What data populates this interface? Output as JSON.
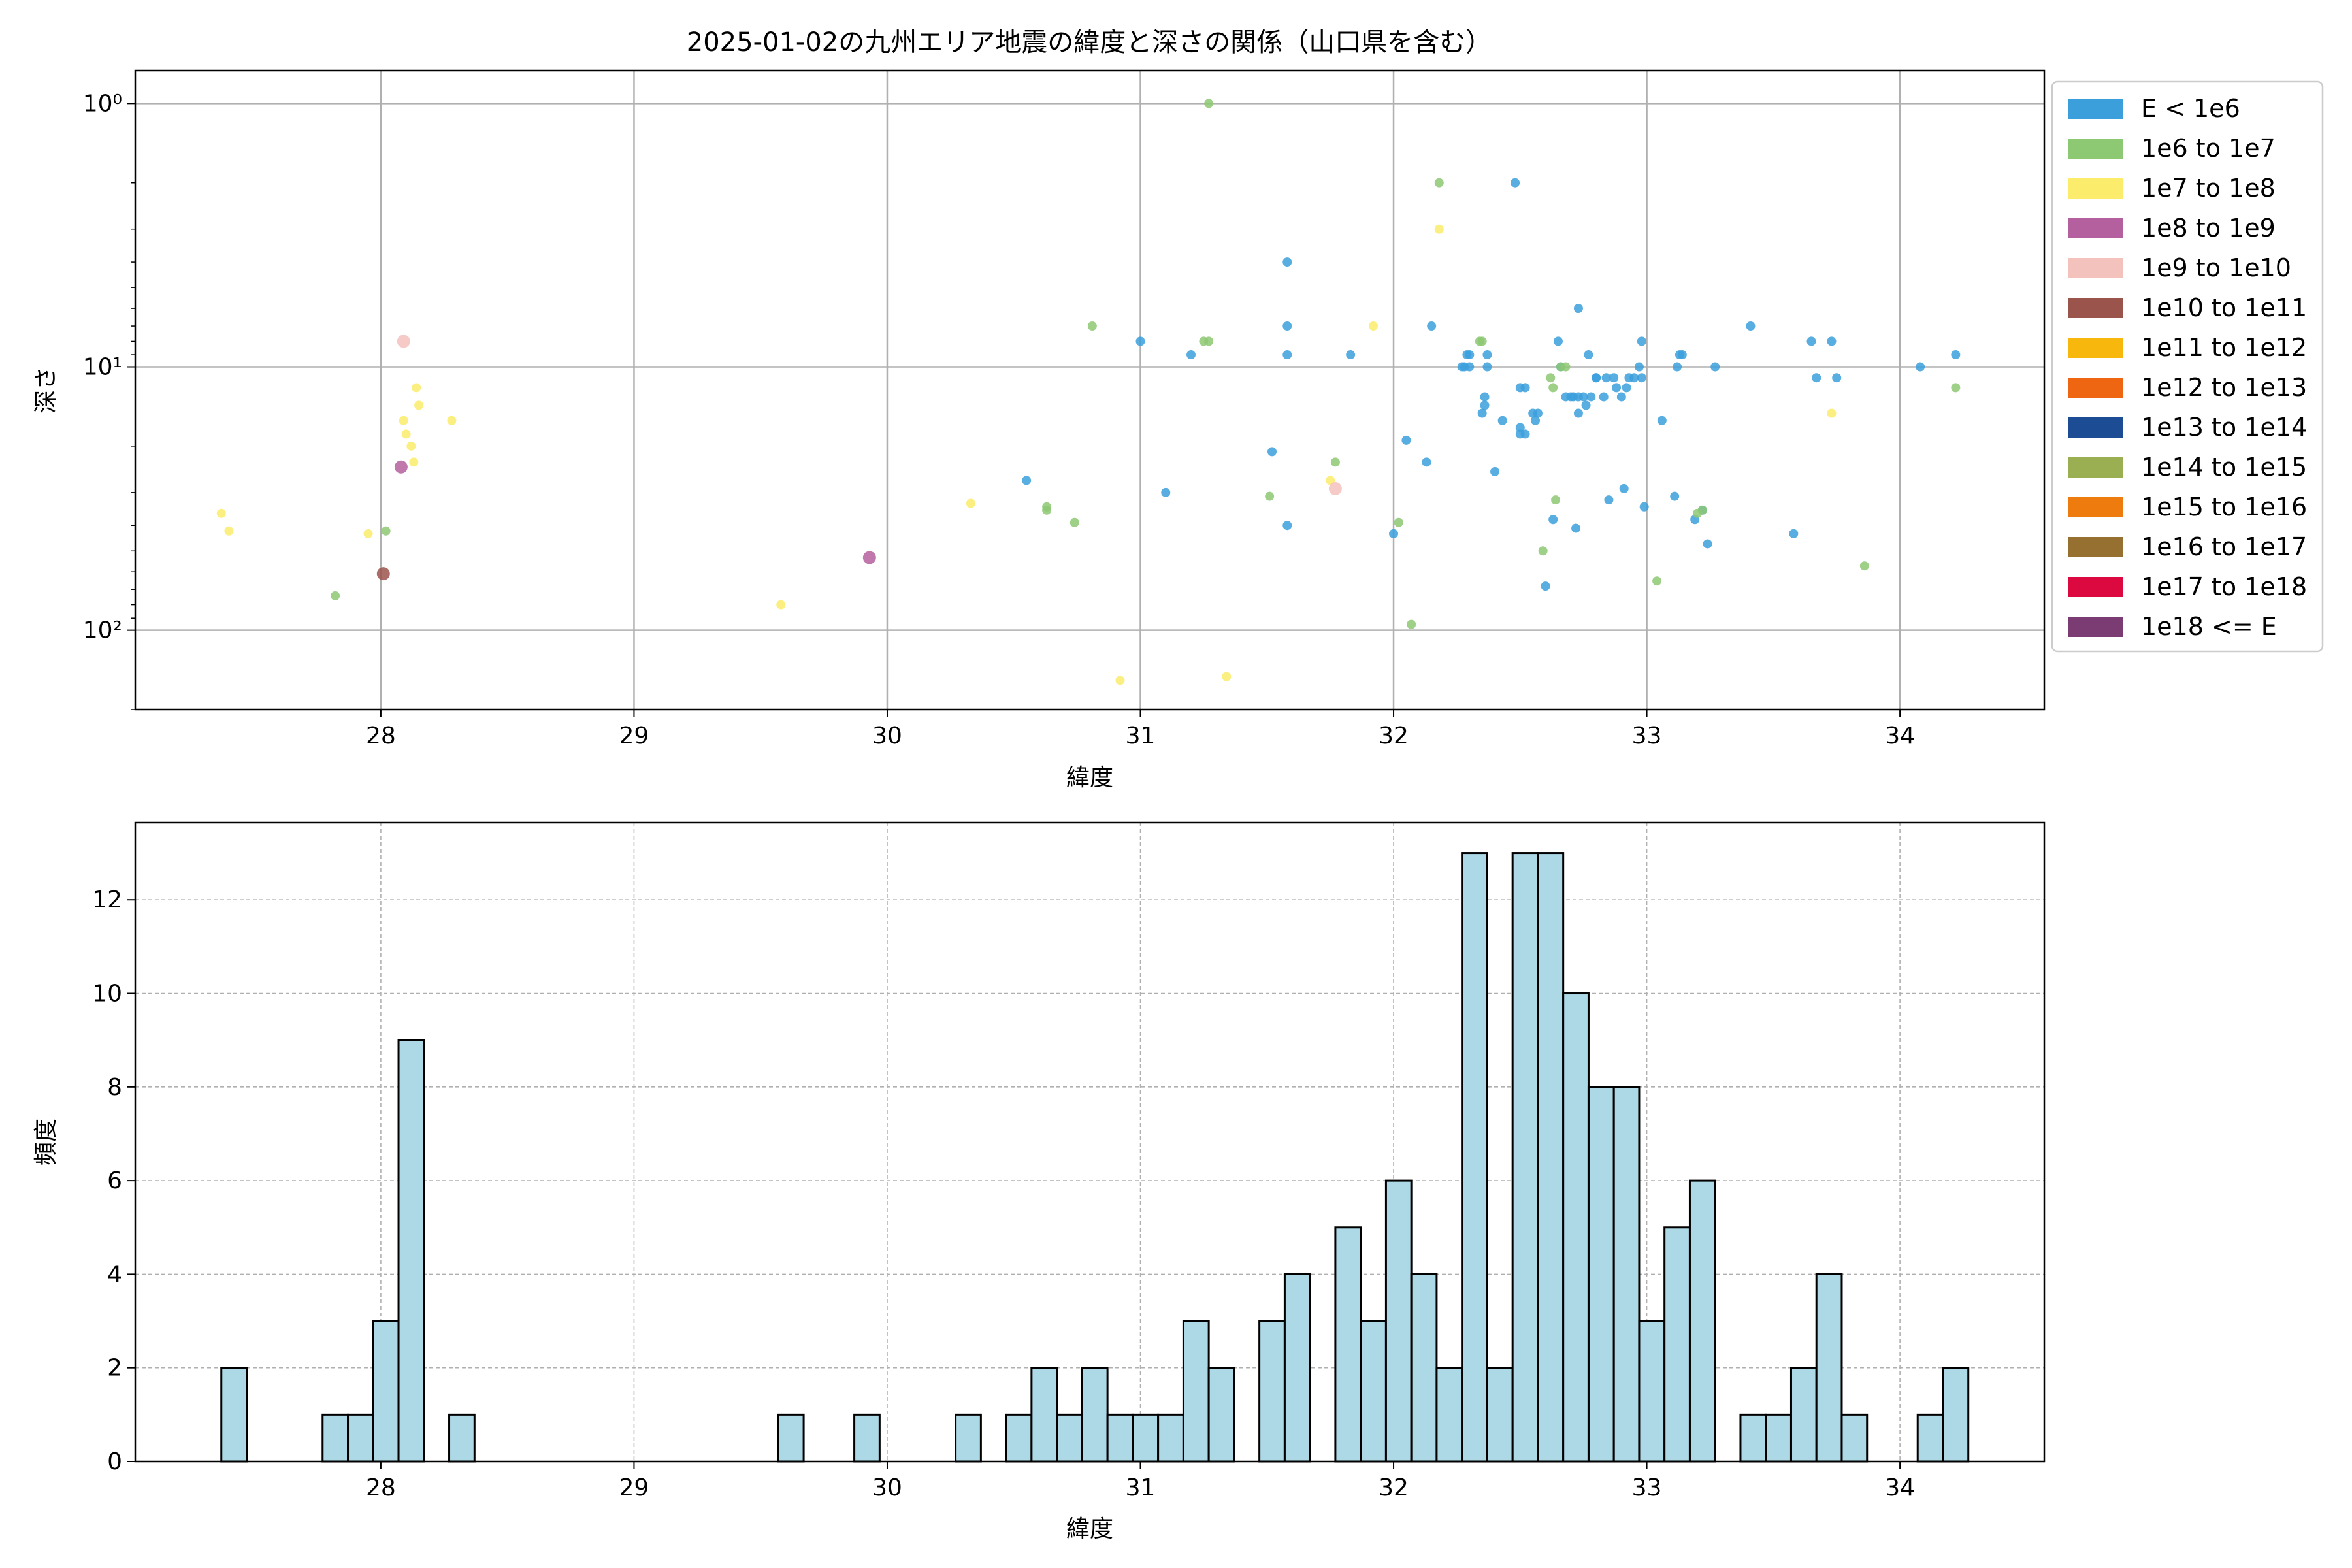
{
  "chart_data": [
    {
      "type": "scatter",
      "title": "2025-01-02の九州エリア地震の緯度と深さの関係（山口県を含む）",
      "xlabel": "緯度",
      "ylabel": "深さ",
      "xlim": [
        27.03,
        34.57
      ],
      "ylim": [
        200,
        0.75
      ],
      "yscale": "log (inverted)",
      "xticks": [
        "28",
        "29",
        "30",
        "31",
        "32",
        "33",
        "34"
      ],
      "yticks": [
        "10⁰",
        "10¹",
        "10²"
      ],
      "grid": true,
      "legend_position": "outside-right",
      "legend": [
        {
          "label": "E < 1e6",
          "color": "#3b9fdc"
        },
        {
          "label": "1e6 to 1e7",
          "color": "#8dc873"
        },
        {
          "label": "1e7 to 1e8",
          "color": "#fcec6b"
        },
        {
          "label": "1e8 to 1e9",
          "color": "#b5609e"
        },
        {
          "label": "1e9 to 1e10",
          "color": "#f4c2bd"
        },
        {
          "label": "1e10 to 1e11",
          "color": "#9b544c"
        },
        {
          "label": "1e11 to 1e12",
          "color": "#f8b70c"
        },
        {
          "label": "1e12 to 1e13",
          "color": "#ee6612"
        },
        {
          "label": "1e13 to 1e14",
          "color": "#1c4d94"
        },
        {
          "label": "1e14 to 1e15",
          "color": "#9aaf51"
        },
        {
          "label": "1e15 to 1e16",
          "color": "#ee7b0e"
        },
        {
          "label": "1e16 to 1e17",
          "color": "#957030"
        },
        {
          "label": "1e17 to 1e18",
          "color": "#dc0940"
        },
        {
          "label": "1e18 <= E",
          "color": "#7b3c74"
        }
      ],
      "series": [
        {
          "name": "E < 1e6",
          "points": [
            [
              30.55,
              27
            ],
            [
              31.0,
              8
            ],
            [
              31.1,
              30
            ],
            [
              31.2,
              9
            ],
            [
              31.52,
              21
            ],
            [
              31.58,
              4
            ],
            [
              31.58,
              7
            ],
            [
              31.58,
              9
            ],
            [
              31.58,
              40
            ],
            [
              31.83,
              9
            ],
            [
              32.0,
              43
            ],
            [
              32.05,
              19
            ],
            [
              32.13,
              23
            ],
            [
              32.15,
              7
            ],
            [
              32.27,
              10
            ],
            [
              32.28,
              10
            ],
            [
              32.29,
              9
            ],
            [
              32.3,
              9
            ],
            [
              32.3,
              10
            ],
            [
              32.35,
              15
            ],
            [
              32.36,
              13
            ],
            [
              32.36,
              14
            ],
            [
              32.37,
              9
            ],
            [
              32.37,
              10
            ],
            [
              32.4,
              25
            ],
            [
              32.43,
              16
            ],
            [
              32.48,
              2
            ],
            [
              32.5,
              12
            ],
            [
              32.5,
              17
            ],
            [
              32.5,
              18
            ],
            [
              32.52,
              18
            ],
            [
              32.52,
              12
            ],
            [
              32.55,
              15
            ],
            [
              32.56,
              16
            ],
            [
              32.57,
              15
            ],
            [
              32.6,
              68
            ],
            [
              32.63,
              38
            ],
            [
              32.65,
              8
            ],
            [
              32.66,
              10
            ],
            [
              32.68,
              13
            ],
            [
              32.7,
              13
            ],
            [
              32.71,
              13
            ],
            [
              32.72,
              41
            ],
            [
              32.73,
              6
            ],
            [
              32.73,
              13
            ],
            [
              32.73,
              15
            ],
            [
              32.75,
              13
            ],
            [
              32.76,
              14
            ],
            [
              32.77,
              9
            ],
            [
              32.78,
              13
            ],
            [
              32.8,
              11
            ],
            [
              32.8,
              11
            ],
            [
              32.83,
              13
            ],
            [
              32.84,
              11
            ],
            [
              32.85,
              32
            ],
            [
              32.87,
              11
            ],
            [
              32.88,
              12
            ],
            [
              32.9,
              13
            ],
            [
              32.91,
              29
            ],
            [
              32.92,
              12
            ],
            [
              32.93,
              11
            ],
            [
              32.95,
              11
            ],
            [
              32.97,
              10
            ],
            [
              32.98,
              8
            ],
            [
              32.98,
              11
            ],
            [
              32.99,
              34
            ],
            [
              33.06,
              16
            ],
            [
              33.11,
              31
            ],
            [
              33.12,
              10
            ],
            [
              33.13,
              9
            ],
            [
              33.14,
              9
            ],
            [
              33.19,
              38
            ],
            [
              33.22,
              35
            ],
            [
              33.24,
              47
            ],
            [
              33.27,
              10
            ],
            [
              33.41,
              7
            ],
            [
              33.58,
              43
            ],
            [
              33.65,
              8
            ],
            [
              33.67,
              11
            ],
            [
              33.73,
              8
            ],
            [
              33.75,
              11
            ],
            [
              34.08,
              10
            ],
            [
              34.22,
              9
            ]
          ]
        },
        {
          "name": "1e6 to 1e7",
          "points": [
            [
              27.82,
              74
            ],
            [
              28.02,
              42
            ],
            [
              30.63,
              35
            ],
            [
              30.63,
              34
            ],
            [
              30.74,
              39
            ],
            [
              30.81,
              7
            ],
            [
              31.25,
              8
            ],
            [
              31.27,
              8
            ],
            [
              31.27,
              1
            ],
            [
              31.51,
              31
            ],
            [
              31.77,
              23
            ],
            [
              32.02,
              39
            ],
            [
              32.07,
              95
            ],
            [
              32.18,
              2
            ],
            [
              32.34,
              8
            ],
            [
              32.35,
              8
            ],
            [
              32.59,
              50
            ],
            [
              32.62,
              11
            ],
            [
              32.63,
              12
            ],
            [
              32.64,
              32
            ],
            [
              32.66,
              10
            ],
            [
              32.68,
              10
            ],
            [
              33.04,
              65
            ],
            [
              33.2,
              36
            ],
            [
              33.22,
              35
            ],
            [
              33.86,
              57
            ],
            [
              34.22,
              12
            ]
          ]
        },
        {
          "name": "1e7 to 1e8",
          "points": [
            [
              27.37,
              36
            ],
            [
              27.4,
              42
            ],
            [
              27.95,
              43
            ],
            [
              28.09,
              16
            ],
            [
              28.1,
              18
            ],
            [
              28.12,
              20
            ],
            [
              28.13,
              23
            ],
            [
              28.14,
              12
            ],
            [
              28.15,
              14
            ],
            [
              28.28,
              16
            ],
            [
              29.58,
              80
            ],
            [
              30.33,
              33
            ],
            [
              30.92,
              155
            ],
            [
              31.34,
              150
            ],
            [
              31.75,
              27
            ],
            [
              31.92,
              7
            ],
            [
              32.18,
              3
            ],
            [
              33.73,
              15
            ]
          ]
        },
        {
          "name": "1e8 to 1e9",
          "points": [
            [
              28.08,
              24
            ],
            [
              29.93,
              53
            ]
          ]
        },
        {
          "name": "1e9 to 1e10",
          "points": [
            [
              28.09,
              8
            ],
            [
              31.77,
              29
            ]
          ]
        },
        {
          "name": "1e10 to 1e11",
          "points": [
            [
              28.01,
              61
            ]
          ]
        }
      ]
    },
    {
      "type": "bar",
      "subtype": "histogram",
      "title": "",
      "xlabel": "緯度",
      "ylabel": "頻度",
      "xlim": [
        27.03,
        34.57
      ],
      "ylim": [
        0,
        13.65
      ],
      "xticks": [
        "28",
        "29",
        "30",
        "31",
        "32",
        "33",
        "34"
      ],
      "yticks": [
        "0",
        "2",
        "4",
        "6",
        "8",
        "10",
        "12"
      ],
      "grid": true,
      "bin_width": 0.1,
      "bin_starts": [
        27.37,
        27.77,
        27.87,
        27.97,
        28.07,
        28.27,
        29.57,
        29.87,
        30.27,
        30.47,
        30.57,
        30.67,
        30.77,
        30.87,
        30.97,
        31.07,
        31.17,
        31.27,
        31.47,
        31.57,
        31.77,
        31.87,
        31.97,
        32.07,
        32.17,
        32.27,
        32.37,
        32.47,
        32.57,
        32.67,
        32.77,
        32.87,
        32.97,
        33.07,
        33.17,
        33.37,
        33.47,
        33.57,
        33.67,
        33.77,
        34.07,
        34.17
      ],
      "values": [
        2,
        1,
        1,
        3,
        9,
        1,
        1,
        1,
        1,
        1,
        2,
        1,
        2,
        1,
        1,
        1,
        3,
        2,
        3,
        4,
        5,
        3,
        6,
        4,
        2,
        13,
        2,
        13,
        13,
        10,
        8,
        8,
        3,
        5,
        6,
        1,
        1,
        2,
        4,
        1,
        1,
        2
      ],
      "bar_color": "#add8e6",
      "edge_color": "#000000"
    }
  ]
}
